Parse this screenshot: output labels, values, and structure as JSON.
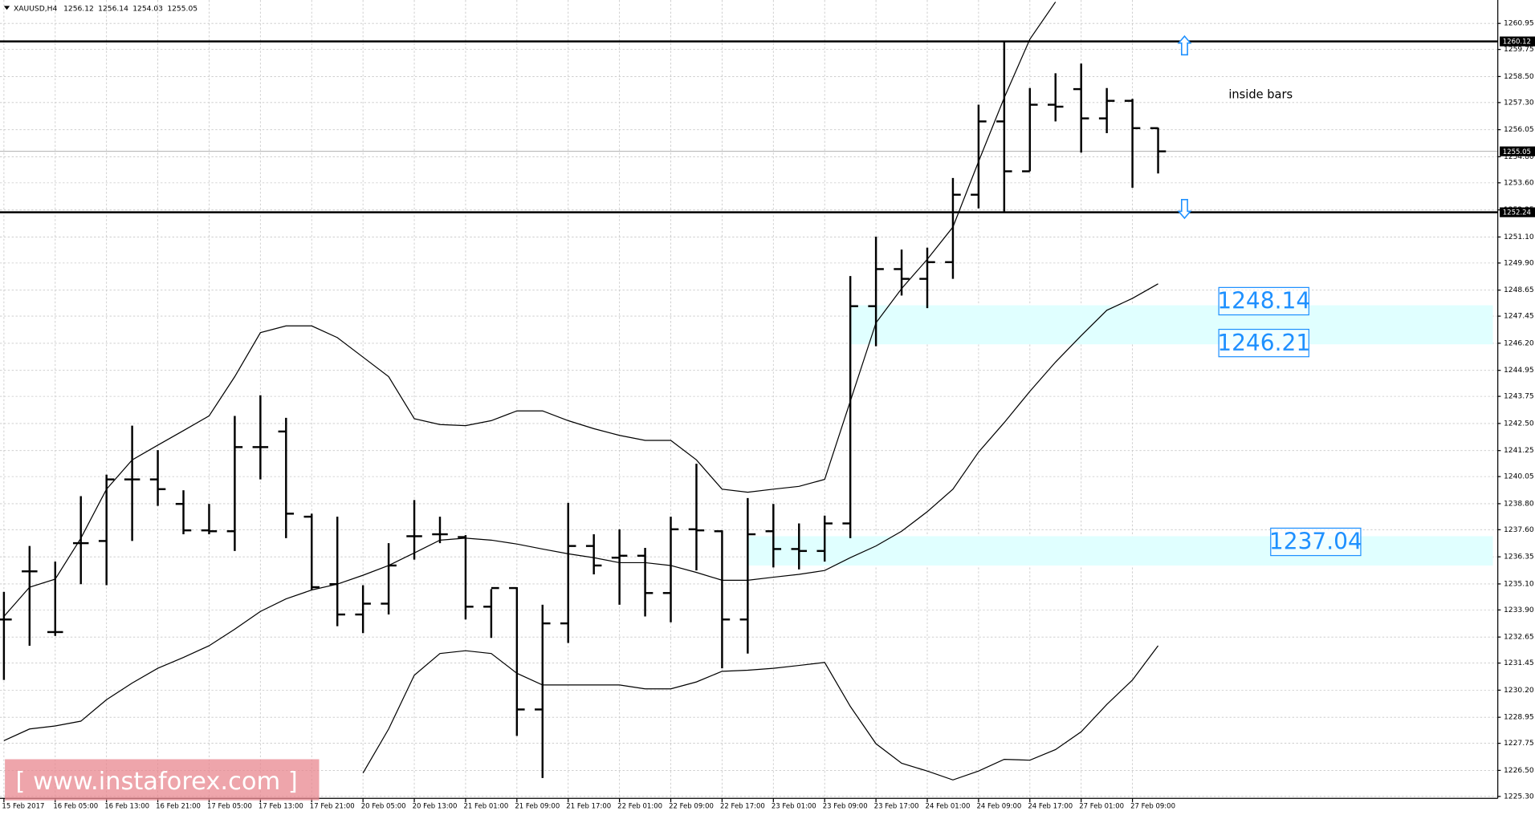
{
  "chart_data": {
    "type": "ohlc",
    "symbol": "XAUUSD,H4",
    "annotation": "inside bars",
    "watermark": "[ www.instaforex.com ]",
    "categories": [
      "15 Feb 2017",
      null,
      "16 Feb 05:00",
      null,
      "16 Feb 13:00",
      null,
      "16 Feb 21:00",
      null,
      "17 Feb 05:00",
      null,
      "17 Feb 13:00",
      null,
      "17 Feb 21:00",
      null,
      "20 Feb 05:00",
      null,
      "20 Feb 13:00",
      null,
      "21 Feb 01:00",
      null,
      "21 Feb 09:00",
      null,
      "21 Feb 17:00",
      null,
      "22 Feb 01:00",
      null,
      "22 Feb 09:00",
      null,
      "22 Feb 17:00",
      null,
      "23 Feb 01:00",
      null,
      "23 Feb 09:00",
      null,
      "23 Feb 17:00",
      null,
      "24 Feb 01:00",
      null,
      "24 Feb 09:00",
      null,
      "24 Feb 17:00",
      null,
      "27 Feb 01:00",
      null,
      "27 Feb 09:00",
      null
    ],
    "open": [
      1233.46,
      1235.68,
      1232.88,
      1236.98,
      1237.08,
      1239.92,
      1239.92,
      1238.79,
      1237.57,
      1237.53,
      1241.41,
      1242.13,
      1238.2,
      1235.09,
      1233.69,
      1234.19,
      1237.3,
      1237.39,
      1237.26,
      1234.05,
      1234.91,
      1229.31,
      1233.28,
      1236.85,
      1236.31,
      1236.4,
      1234.68,
      1237.62,
      1237.53,
      1233.46,
      1237.53,
      1236.71,
      1236.62,
      1237.89,
      1247.91,
      1249.62,
      1249.17,
      1249.94,
      1253.05,
      1256.43,
      1254.13,
      1257.2,
      1257.92,
      1256.57,
      1257.38,
      1256.12
    ],
    "high": [
      1234.73,
      1236.85,
      1236.13,
      1239.15,
      1240.14,
      1242.4,
      1241.27,
      1239.42,
      1238.79,
      1242.85,
      1243.8,
      1242.76,
      1238.34,
      1238.2,
      1235.04,
      1236.98,
      1238.97,
      1238.2,
      1237.35,
      1234.86,
      1234.95,
      1234.14,
      1238.84,
      1237.39,
      1237.62,
      1236.76,
      1238.2,
      1240.64,
      1237.57,
      1239.06,
      1238.79,
      1237.89,
      1238.25,
      1249.3,
      1251.11,
      1250.52,
      1250.61,
      1253.82,
      1257.2,
      1260.12,
      1257.97,
      1258.65,
      1259.1,
      1257.97,
      1257.47,
      1256.14
    ],
    "low": [
      1230.67,
      1232.25,
      1232.7,
      1235.09,
      1235.04,
      1237.08,
      1238.7,
      1237.39,
      1237.39,
      1236.62,
      1239.92,
      1237.21,
      1234.82,
      1233.15,
      1232.83,
      1233.69,
      1236.22,
      1236.98,
      1233.46,
      1232.61,
      1228.09,
      1226.15,
      1232.38,
      1235.54,
      1234.14,
      1233.6,
      1233.33,
      1235.72,
      1231.21,
      1231.89,
      1235.86,
      1235.77,
      1236.13,
      1237.21,
      1246.06,
      1248.4,
      1247.82,
      1249.17,
      1252.42,
      1252.24,
      1254.13,
      1256.43,
      1254.99,
      1255.89,
      1253.37,
      1254.03
    ],
    "close": [
      1233.46,
      1235.68,
      1232.88,
      1236.98,
      1239.92,
      1239.92,
      1239.47,
      1237.57,
      1237.53,
      1241.41,
      1241.41,
      1238.34,
      1234.95,
      1233.69,
      1234.19,
      1235.95,
      1237.3,
      1237.39,
      1234.05,
      1234.91,
      1229.31,
      1233.28,
      1236.85,
      1235.95,
      1236.4,
      1234.68,
      1237.62,
      1237.57,
      1233.46,
      1237.39,
      1236.71,
      1236.62,
      1237.89,
      1247.91,
      1249.62,
      1249.17,
      1249.94,
      1253.05,
      1256.43,
      1254.13,
      1257.2,
      1257.11,
      1256.57,
      1257.38,
      1256.12,
      1255.05
    ],
    "bands": {
      "upper": [
        1233.6,
        1234.95,
        1235.32,
        1237.21,
        1239.47,
        1240.82,
        1241.5,
        1242.17,
        1242.85,
        1244.66,
        1246.69,
        1247.0,
        1247.0,
        1246.46,
        1245.56,
        1244.66,
        1242.72,
        1242.45,
        1242.4,
        1242.63,
        1243.08,
        1243.08,
        1242.63,
        1242.26,
        1241.95,
        1241.72,
        1241.72,
        1240.82,
        1239.47,
        1239.33,
        1239.47,
        1239.6,
        1239.92,
        1243.53,
        1247.14,
        1248.72,
        1250.07,
        1251.56,
        1254.58,
        1257.52,
        1260.22,
        1261.94,
        null,
        null,
        null,
        null
      ],
      "middle": [
        1227.87,
        1228.41,
        1228.55,
        1228.77,
        1229.76,
        1230.53,
        1231.21,
        1231.71,
        1232.25,
        1233.01,
        1233.83,
        1234.41,
        1234.82,
        1235.09,
        1235.5,
        1235.95,
        1236.53,
        1237.12,
        1237.21,
        1237.12,
        1236.94,
        1236.71,
        1236.49,
        1236.31,
        1236.08,
        1236.08,
        1235.95,
        1235.63,
        1235.27,
        1235.27,
        1235.41,
        1235.54,
        1235.72,
        1236.31,
        1236.85,
        1237.53,
        1238.43,
        1239.47,
        1241.18,
        1242.54,
        1243.98,
        1245.33,
        1246.55,
        1247.72,
        1248.27,
        1248.94
      ],
      "lower": [
        null,
        null,
        null,
        null,
        null,
        null,
        null,
        null,
        null,
        null,
        null,
        null,
        null,
        null,
        1226.38,
        1228.41,
        1230.89,
        1231.89,
        1232.02,
        1231.89,
        1230.98,
        1230.44,
        1230.44,
        1230.44,
        1230.44,
        1230.26,
        1230.26,
        1230.58,
        1231.07,
        1231.12,
        1231.21,
        1231.34,
        1231.48,
        1229.45,
        1227.73,
        1226.83,
        1226.47,
        1226.06,
        1226.47,
        1227.01,
        1226.97,
        1227.46,
        1228.28,
        1229.54,
        1230.67,
        1232.25
      ]
    },
    "lines": [
      1260.12,
      1252.24
    ],
    "zones": [
      {
        "high": 1247.95,
        "low": 1246.15,
        "start": 33,
        "labels": [
          1248.14,
          1246.21
        ]
      },
      {
        "high": 1237.3,
        "low": 1235.95,
        "start": 29,
        "labels": [
          1237.04
        ]
      }
    ],
    "ylim": [
      1225.21,
      1262.03
    ],
    "yticks": [
      1260.95,
      1259.75,
      {
        "value": 1258.5,
        "label": "1258.50"
      },
      {
        "value": 1257.3,
        "label": "1257.30"
      },
      1256.05,
      {
        "value": 1254.8,
        "label": "1254.80"
      },
      {
        "value": 1253.6,
        "label": "1253.60"
      },
      1252.35,
      {
        "value": 1251.1,
        "label": "1251.10"
      },
      {
        "value": 1249.9,
        "label": "1249.90"
      },
      1248.65,
      1247.45,
      {
        "value": 1246.2,
        "label": "1246.20"
      },
      1244.95,
      1243.75,
      {
        "value": 1242.5,
        "label": "1242.50"
      },
      1241.25,
      1240.05,
      {
        "value": 1238.8,
        "label": "1238.80"
      },
      {
        "value": 1237.6,
        "label": "1237.60"
      },
      1236.35,
      {
        "value": 1235.1,
        "label": "1235.10"
      },
      {
        "value": 1233.9,
        "label": "1233.90"
      },
      1232.65,
      1231.45,
      {
        "value": 1230.2,
        "label": "1230.20"
      },
      1228.95,
      1227.75,
      {
        "value": 1226.5,
        "label": "1226.50"
      },
      {
        "value": 1225.3,
        "label": "1225.30"
      }
    ],
    "grid": true,
    "color": "#000000",
    "zone_color": "#e0ffff",
    "level_color": "#1e90ff"
  }
}
